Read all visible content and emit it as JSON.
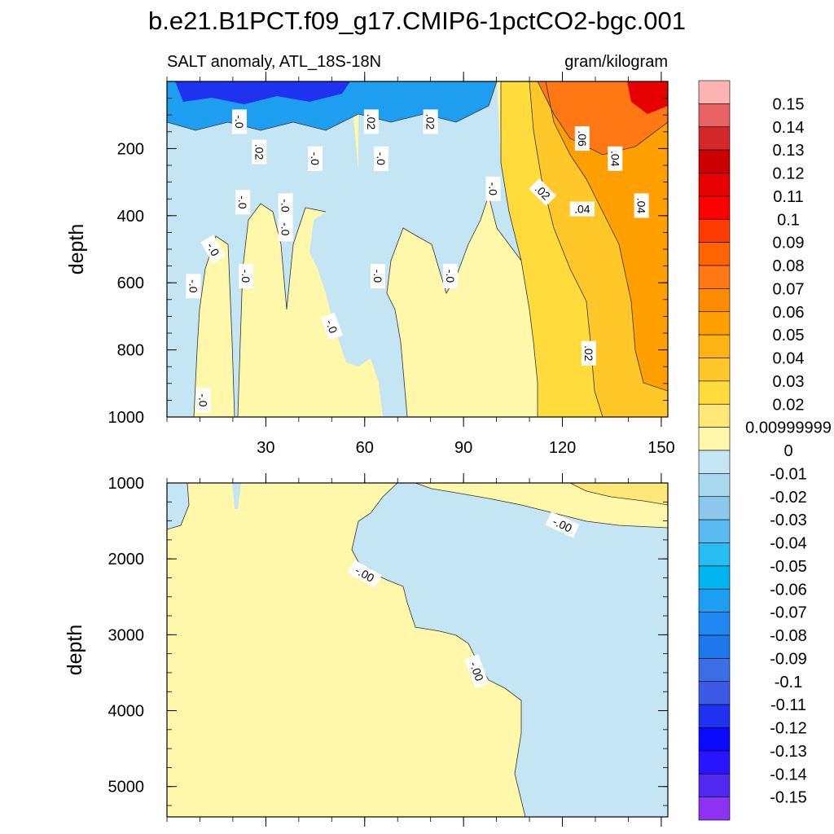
{
  "chart_data": {
    "type": "contour",
    "title": "b.e21.B1PCT.f09_g17.CMIP6-1pctCO2-bgc.001",
    "variable_label": "SALT anomaly, ATL_18S-18N",
    "units_label": "gram/kilogram",
    "panels": [
      {
        "name": "upper",
        "ylabel": "depth",
        "ylim": [
          0,
          1000
        ],
        "y_reversed": true,
        "yticks": [
          200,
          400,
          600,
          800,
          1000
        ],
        "yticks_text": [
          "200",
          "400",
          "600",
          "800",
          "1000"
        ],
        "xlim": [
          0,
          152
        ],
        "xticks": [
          30,
          60,
          90,
          120,
          150
        ],
        "xticks_text": [
          "30",
          "60",
          "90",
          "120",
          "150"
        ],
        "contour_labels": [
          {
            "text": "-.0",
            "x": 11,
            "y": 950,
            "rot": 90
          },
          {
            "text": "-.0",
            "x": 8,
            "y": 610,
            "rot": 90
          },
          {
            "text": "-.0",
            "x": 14,
            "y": 500,
            "rot": 60
          },
          {
            "text": "-.0",
            "x": 24,
            "y": 580,
            "rot": 90
          },
          {
            "text": "-.0",
            "x": 23,
            "y": 360,
            "rot": 90
          },
          {
            "text": "-.0",
            "x": 22,
            "y": 120,
            "rot": 90
          },
          {
            "text": ".02",
            "x": 28,
            "y": 210,
            "rot": 90
          },
          {
            "text": "-.0",
            "x": 36,
            "y": 370,
            "rot": 90
          },
          {
            "text": "-.0",
            "x": 36,
            "y": 440,
            "rot": 90
          },
          {
            "text": "-.0",
            "x": 45,
            "y": 230,
            "rot": 90
          },
          {
            "text": "-.0",
            "x": 50,
            "y": 730,
            "rot": 70
          },
          {
            "text": ".02",
            "x": 62,
            "y": 120,
            "rot": 90
          },
          {
            "text": "-.0",
            "x": 65,
            "y": 230,
            "rot": 90
          },
          {
            "text": "-.0",
            "x": 64,
            "y": 580,
            "rot": 90
          },
          {
            "text": ".02",
            "x": 80,
            "y": 120,
            "rot": 90
          },
          {
            "text": "-.0",
            "x": 86,
            "y": 580,
            "rot": 90
          },
          {
            "text": "-.0",
            "x": 99,
            "y": 320,
            "rot": 90
          },
          {
            "text": ".02",
            "x": 114,
            "y": 330,
            "rot": 45
          },
          {
            "text": ".06",
            "x": 126,
            "y": 170,
            "rot": 90
          },
          {
            "text": ".04",
            "x": 136,
            "y": 230,
            "rot": 90
          },
          {
            "text": ".04",
            "x": 126,
            "y": 380,
            "rot": 0
          },
          {
            "text": ".04",
            "x": 144,
            "y": 370,
            "rot": 90
          },
          {
            "text": ".02",
            "x": 128,
            "y": 810,
            "rot": 90
          }
        ]
      },
      {
        "name": "lower",
        "ylabel": "depth",
        "ylim": [
          1000,
          5400
        ],
        "y_reversed": true,
        "yticks": [
          1000,
          2000,
          3000,
          4000,
          5000
        ],
        "yticks_text": [
          "1000",
          "2000",
          "3000",
          "4000",
          "5000"
        ],
        "xlim": [
          0,
          152
        ],
        "contour_labels": [
          {
            "text": "-.00",
            "x": 120,
            "y": 1550,
            "rot": 25
          },
          {
            "text": "-.00",
            "x": 60,
            "y": 2200,
            "rot": 30
          },
          {
            "text": "-.00",
            "x": 94,
            "y": 3480,
            "rot": 70
          }
        ]
      }
    ],
    "colorbar": {
      "levels": [
        "0.15",
        "0.14",
        "0.13",
        "0.12",
        "0.11",
        "0.1",
        "0.09",
        "0.08",
        "0.07",
        "0.06",
        "0.05",
        "0.04",
        "0.03",
        "0.02",
        "0.00999999",
        "0",
        "-0.01",
        "-0.02",
        "-0.03",
        "-0.04",
        "-0.05",
        "-0.06",
        "-0.07",
        "-0.08",
        "-0.09",
        "-0.1",
        "-0.11",
        "-0.12",
        "-0.13",
        "-0.14",
        "-0.15"
      ],
      "colors": [
        "#ffb4b4",
        "#e86464",
        "#d22828",
        "#cc0000",
        "#e60000",
        "#ff0000",
        "#ff3c00",
        "#ff6400",
        "#ff7814",
        "#ff8c00",
        "#ffa000",
        "#ffb414",
        "#ffc828",
        "#ffdc3c",
        "#ffe878",
        "#fff8aa",
        "#c4e6f4",
        "#a8d8ee",
        "#8cc8ec",
        "#5ab9f0",
        "#28bcf4",
        "#00b4f0",
        "#1e9ef0",
        "#1e87f0",
        "#1e78eb",
        "#3c6ee6",
        "#3c5ae6",
        "#1e32f0",
        "#0a0aff",
        "#2814ff",
        "#5028f0",
        "#8c32f0"
      ]
    }
  }
}
